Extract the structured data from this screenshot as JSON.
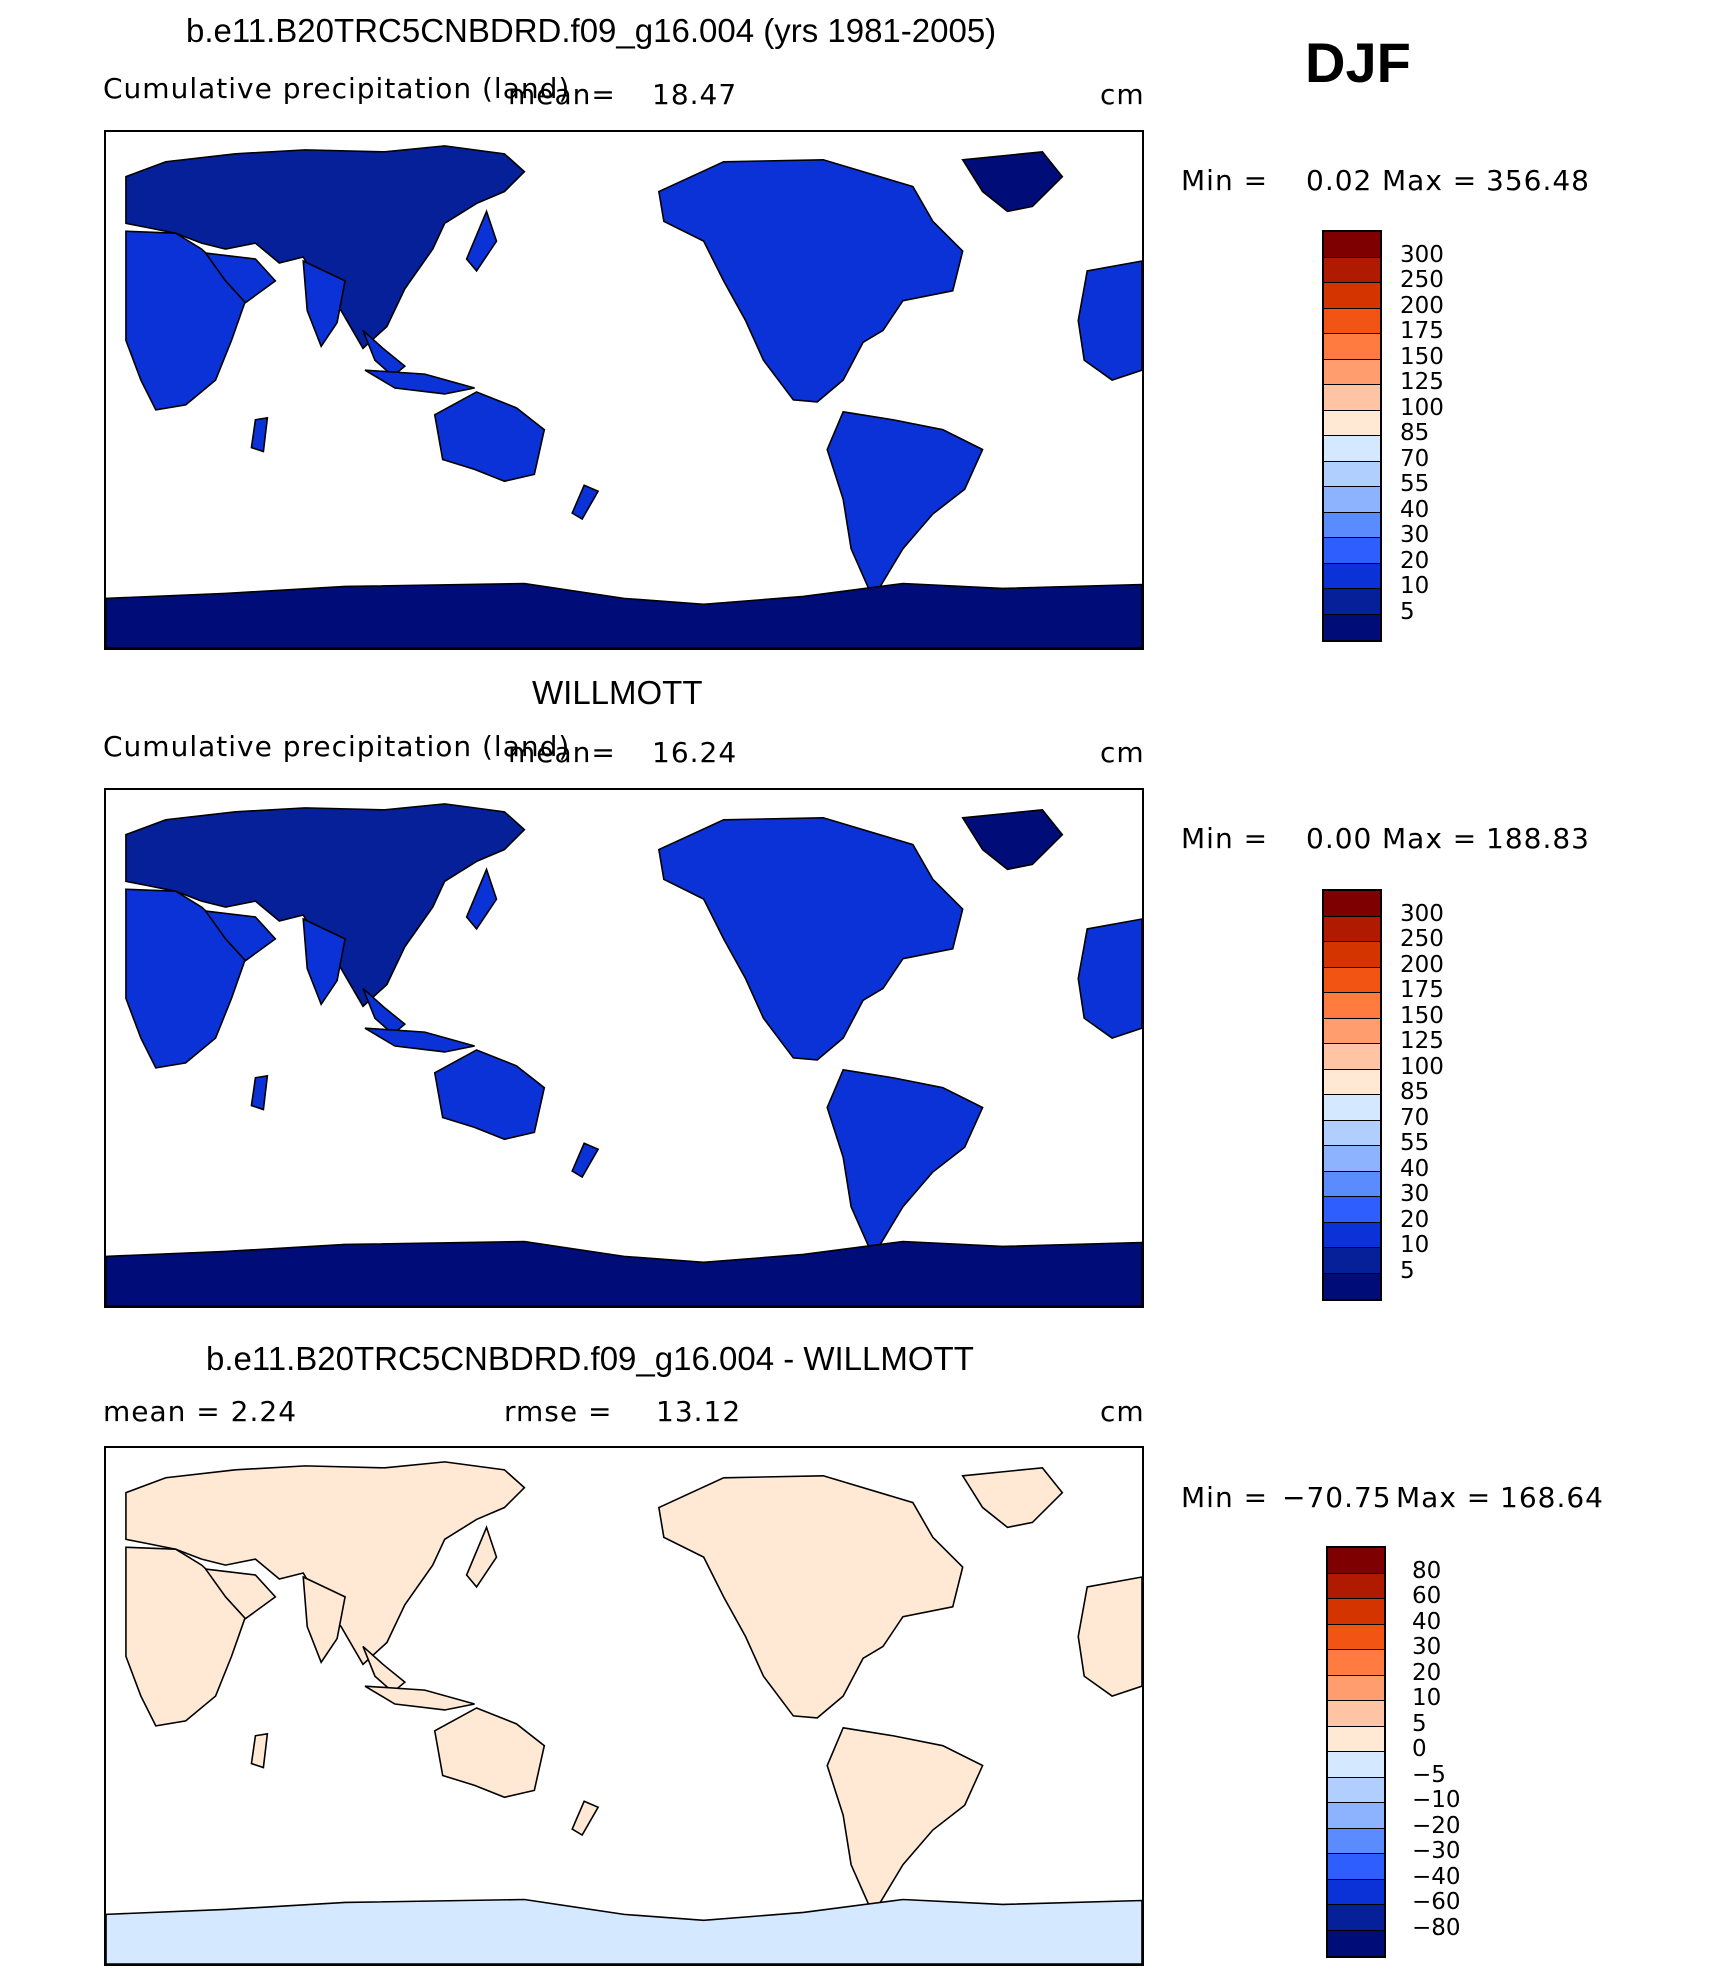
{
  "season": "DJF",
  "panels": [
    {
      "id": "model",
      "title": "b.e11.B20TRC5CNBDRD.f09_g16.004 (yrs 1981-2005)",
      "variable_label": "Cumulative precipitation  (land)",
      "left_stat": "",
      "mean_label": "mean=",
      "mean_value": "18.47",
      "units": "cm",
      "min_label": "Min  =",
      "min_value": "0.02",
      "max_label": "Max  =",
      "max_value": "356.48",
      "scale": "abs",
      "colorbar": {
        "levels": [
          "300",
          "250",
          "200",
          "175",
          "150",
          "125",
          "100",
          "85",
          "70",
          "55",
          "40",
          "30",
          "20",
          "10",
          "5"
        ],
        "colors": [
          "#7f0000",
          "#b01a00",
          "#d43400",
          "#f25414",
          "#ff7b40",
          "#ff9d6e",
          "#ffc4a3",
          "#ffe9d4",
          "#d4e9ff",
          "#b0cfff",
          "#8db3ff",
          "#5b8cff",
          "#2f5eff",
          "#0a32d6",
          "#052098",
          "#000c78"
        ]
      }
    },
    {
      "id": "obs",
      "title": "WILLMOTT",
      "variable_label": "Cumulative precipitation  (land)",
      "left_stat": "",
      "mean_label": "mean=",
      "mean_value": "16.24",
      "units": "cm",
      "min_label": "Min  =",
      "min_value": "0.00",
      "max_label": "Max  =",
      "max_value": "188.83",
      "scale": "abs",
      "colorbar": {
        "levels": [
          "300",
          "250",
          "200",
          "175",
          "150",
          "125",
          "100",
          "85",
          "70",
          "55",
          "40",
          "30",
          "20",
          "10",
          "5"
        ],
        "colors": [
          "#7f0000",
          "#b01a00",
          "#d43400",
          "#f25414",
          "#ff7b40",
          "#ff9d6e",
          "#ffc4a3",
          "#ffe9d4",
          "#d4e9ff",
          "#b0cfff",
          "#8db3ff",
          "#5b8cff",
          "#2f5eff",
          "#0a32d6",
          "#052098",
          "#000c78"
        ]
      }
    },
    {
      "id": "diff",
      "title": "b.e11.B20TRC5CNBDRD.f09_g16.004 - WILLMOTT",
      "variable_label": "",
      "left_stat": "mean =     2.24",
      "mean_label": "rmse  =",
      "mean_value": "13.12",
      "units": "cm",
      "min_label": "Min  =",
      "min_value": "−70.75",
      "max_label": "Max  =",
      "max_value": "168.64",
      "scale": "diff",
      "colorbar": {
        "levels": [
          "80",
          "60",
          "40",
          "30",
          "20",
          "10",
          "5",
          "0",
          "−5",
          "−10",
          "−20",
          "−30",
          "−40",
          "−60",
          "−80"
        ],
        "colors": [
          "#7f0000",
          "#b01a00",
          "#d43400",
          "#f25414",
          "#ff7b40",
          "#ff9d6e",
          "#ffc4a3",
          "#ffe9d4",
          "#d4e9ff",
          "#b0cfff",
          "#8db3ff",
          "#5b8cff",
          "#2f5eff",
          "#0a32d6",
          "#052098",
          "#000c78"
        ]
      }
    }
  ]
}
